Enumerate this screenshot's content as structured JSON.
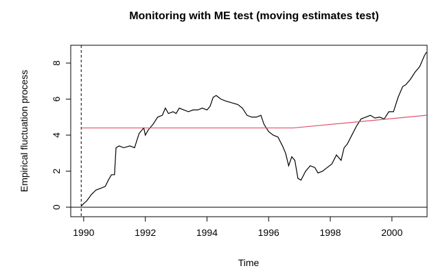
{
  "chart_data": {
    "type": "line",
    "title": "Monitoring with ME test (moving estimates test)",
    "xlabel": "Time",
    "ylabel": "Empirical fluctuation process",
    "series": [
      {
        "color": "#000000",
        "x": [
          1989.92,
          1990.0,
          1990.1,
          1990.25,
          1990.4,
          1990.55,
          1990.7,
          1990.8,
          1990.9,
          1991.0,
          1991.05,
          1991.15,
          1991.3,
          1991.5,
          1991.65,
          1991.8,
          1991.95,
          1992.0,
          1992.1,
          1992.25,
          1992.4,
          1992.55,
          1992.65,
          1992.75,
          1992.9,
          1993.0,
          1993.1,
          1993.25,
          1993.4,
          1993.55,
          1993.7,
          1993.85,
          1994.0,
          1994.1,
          1994.2,
          1994.3,
          1994.45,
          1994.6,
          1994.8,
          1995.0,
          1995.15,
          1995.3,
          1995.45,
          1995.6,
          1995.75,
          1995.85,
          1996.0,
          1996.15,
          1996.3,
          1996.45,
          1996.55,
          1996.65,
          1996.75,
          1996.85,
          1996.95,
          1997.05,
          1997.2,
          1997.35,
          1997.5,
          1997.6,
          1997.75,
          1997.9,
          1998.05,
          1998.2,
          1998.35,
          1998.45,
          1998.55,
          1998.7,
          1998.85,
          1999.0,
          1999.15,
          1999.3,
          1999.45,
          1999.6,
          1999.75,
          1999.9,
          2000.05,
          2000.2,
          2000.35,
          2000.45,
          2000.6,
          2000.75,
          2000.9,
          2001.05,
          2001.12
        ],
        "values": [
          0.05,
          0.2,
          0.35,
          0.7,
          0.95,
          1.05,
          1.15,
          1.5,
          1.8,
          1.8,
          3.3,
          3.4,
          3.3,
          3.4,
          3.3,
          4.1,
          4.4,
          4.0,
          4.3,
          4.6,
          5.0,
          5.1,
          5.5,
          5.2,
          5.3,
          5.2,
          5.5,
          5.4,
          5.3,
          5.4,
          5.4,
          5.5,
          5.4,
          5.6,
          6.1,
          6.2,
          6.0,
          5.9,
          5.8,
          5.7,
          5.5,
          5.1,
          5.0,
          5.0,
          5.1,
          4.6,
          4.2,
          4.0,
          3.9,
          3.4,
          3.0,
          2.3,
          2.8,
          2.6,
          1.6,
          1.5,
          2.0,
          2.3,
          2.2,
          1.9,
          2.0,
          2.2,
          2.4,
          2.9,
          2.6,
          3.3,
          3.5,
          4.0,
          4.5,
          4.9,
          5.0,
          5.1,
          4.95,
          5.0,
          4.9,
          5.3,
          5.3,
          6.1,
          6.7,
          6.8,
          7.1,
          7.5,
          7.8,
          8.4,
          8.6
        ]
      },
      {
        "color": "#df536b",
        "x": [
          1989.92,
          1996.8,
          2001.12
        ],
        "values": [
          4.4,
          4.4,
          5.1
        ]
      }
    ],
    "start_line": 1989.92,
    "zero_line": 0,
    "xlim": [
      1989.58,
      2001.14
    ],
    "ylim": [
      -0.53,
      8.99
    ],
    "xticks": [
      1990,
      1992,
      1994,
      1996,
      1998,
      2000
    ],
    "yticks": [
      0,
      2,
      4,
      6,
      8
    ]
  }
}
